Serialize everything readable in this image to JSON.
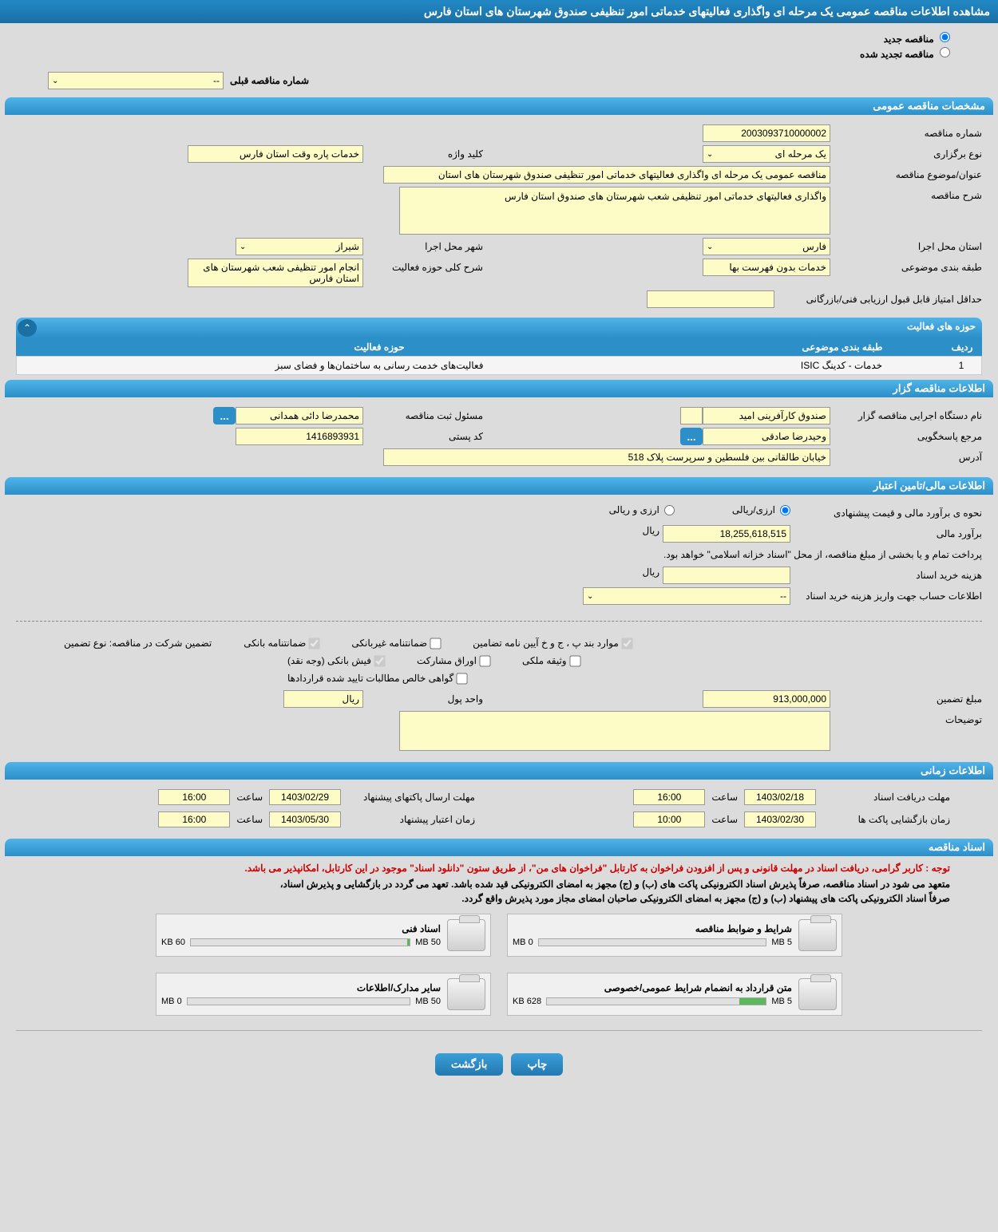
{
  "page_title": "مشاهده اطلاعات مناقصه عمومی یک مرحله ای واگذاری فعالیتهای خدماتی امور تنظیفی صندوق شهرستان های استان فارس",
  "radio": {
    "new_tender": "مناقصه جدید",
    "renewed_tender": "مناقصه تجدید شده"
  },
  "prev_tender": {
    "label": "شماره مناقصه قبلی",
    "value": "--"
  },
  "sections": {
    "general": "مشخصات مناقصه عمومی",
    "activities": "حوزه های فعالیت",
    "organizer": "اطلاعات مناقصه گزار",
    "financial": "اطلاعات مالی/تامین اعتبار",
    "timing": "اطلاعات زمانی",
    "documents": "اسناد مناقصه"
  },
  "general": {
    "tender_no_label": "شماره مناقصه",
    "tender_no": "2003093710000002",
    "holding_type_label": "نوع برگزاری",
    "holding_type": "یک مرحله ای",
    "keyword_label": "کلید واژه",
    "keyword": "خدمات پاره وقت استان فارس",
    "title_label": "عنوان/موضوع مناقصه",
    "title": "مناقصه عمومی یک مرحله ای واگذاری فعالیتهای خدماتی امور تنظیفی صندوق شهرستان های استان",
    "desc_label": "شرح مناقصه",
    "desc": "واگذاری فعالیتهای خدماتی امور تنظیفی شعب شهرستان های صندوق استان فارس",
    "province_label": "استان محل اجرا",
    "province": "فارس",
    "city_label": "شهر محل اجرا",
    "city": "شیراز",
    "subject_class_label": "طبقه بندی موضوعی",
    "subject_class": "خدمات بدون فهرست بها",
    "scope_label": "شرح کلی حوزه فعالیت",
    "scope": "انجام امور تنظیفی شعب شهرستان های استان فارس",
    "min_score_label": "حداقل امتیاز قابل قبول ارزیابی فنی/بازرگانی",
    "min_score": ""
  },
  "activities_table": {
    "col_idx": "ردیف",
    "col_cat": "طبقه بندی موضوعی",
    "col_act": "حوزه فعالیت",
    "rows": [
      {
        "idx": "1",
        "cat": "خدمات - کدینگ ISIC",
        "act": "فعالیت‌های خدمت رسانی به ساختمان‌ها و فضای سبز"
      }
    ]
  },
  "organizer": {
    "agency_label": "نام دستگاه اجرایی مناقصه گزار",
    "agency": "صندوق کارآفرینی امید",
    "registrar_label": "مسئول ثبت مناقصه",
    "registrar": "محمدرضا دائی همدانی",
    "responder_label": "مرجع پاسخگویی",
    "responder": "وحیدرضا صادقی",
    "postal_label": "کد پستی",
    "postal": "1416893931",
    "address_label": "آدرس",
    "address": "خیابان طالقانی بین فلسطین و سرپرست پلاک 518"
  },
  "financial": {
    "method_label": "نحوه ی برآورد مالی و قیمت پیشنهادی",
    "option_rial": "ارزی/ریالی",
    "option_both": "ارزی و ریالی",
    "estimate_label": "برآورد مالی",
    "estimate": "18,255,618,515",
    "currency": "ریال",
    "payment_note": "پرداخت تمام و یا بخشی از مبلغ مناقصه، از محل \"اسناد خزانه اسلامی\" خواهد بود.",
    "purchase_cost_label": "هزینه خرید اسناد",
    "purchase_cost": "",
    "account_info_label": "اطلاعات حساب جهت واریز هزینه خرید اسناد",
    "account_info": "--",
    "guarantee_type_label": "تضمین شرکت در مناقصه:    نوع تضمین",
    "chk_bank_guarantee": "ضمانتنامه بانکی",
    "chk_nonbank_guarantee": "ضمانتنامه غیربانکی",
    "chk_clause": "موارد بند پ ، ج و خ آیین نامه تضامین",
    "chk_cash": "فیش بانکی (وجه نقد)",
    "chk_bonds": "اوراق مشارکت",
    "chk_property": "وثیقه ملکی",
    "chk_certificate": "گواهی خالص مطالبات تایید شده قراردادها",
    "guarantee_amount_label": "مبلغ تضمین",
    "guarantee_amount": "913,000,000",
    "currency_unit_label": "واحد پول",
    "currency_unit": "ریال",
    "remarks_label": "توضیحات"
  },
  "timing": {
    "receive_deadline_label": "مهلت دریافت اسناد",
    "receive_deadline_date": "1403/02/18",
    "receive_deadline_time": "16:00",
    "submit_deadline_label": "مهلت ارسال پاکتهای پیشنهاد",
    "submit_deadline_date": "1403/02/29",
    "submit_deadline_time": "16:00",
    "opening_label": "زمان بازگشایی پاکت ها",
    "opening_date": "1403/02/30",
    "opening_time": "10:00",
    "validity_label": "زمان اعتبار پیشنهاد",
    "validity_date": "1403/05/30",
    "validity_time": "16:00",
    "time_label": "ساعت"
  },
  "documents": {
    "red_note": "توجه : کاربر گرامی، دریافت اسناد در مهلت قانونی و پس از افزودن فراخوان به کارتابل \"فراخوان های من\"، از طریق ستون \"دانلود اسناد\" موجود در این کارتابل، امکانپذیر می باشد.",
    "bold_note1": "متعهد می شود در اسناد مناقصه، صرفاً پذیرش اسناد الکترونیکی پاکت های (ب) و (ج) مجهز به امضای الکترونیکی قید شده باشد. تعهد می گردد در بازگشایی و پذیرش اسناد،",
    "bold_note2": "صرفاً اسناد الکترونیکی پاکت های پیشنهاد (ب) و (ج) مجهز به امضای الکترونیکی صاحبان امضای مجاز مورد پذیرش واقع گردد.",
    "items": [
      {
        "title": "شرایط و ضوابط مناقصه",
        "used": "0 MB",
        "total": "5 MB",
        "pct": 0
      },
      {
        "title": "اسناد فنی",
        "used": "60 KB",
        "total": "50 MB",
        "pct": 1
      },
      {
        "title": "متن قرارداد به انضمام شرایط عمومی/خصوصی",
        "used": "628 KB",
        "total": "5 MB",
        "pct": 12
      },
      {
        "title": "سایر مدارک/اطلاعات",
        "used": "0 MB",
        "total": "50 MB",
        "pct": 0
      }
    ]
  },
  "buttons": {
    "print": "چاپ",
    "back": "بازگشت",
    "more": "..."
  },
  "colors": {
    "header_blue": "#2c8fc8",
    "yellow_field": "#fdfcc6",
    "page_bg": "#dcdcdc"
  }
}
